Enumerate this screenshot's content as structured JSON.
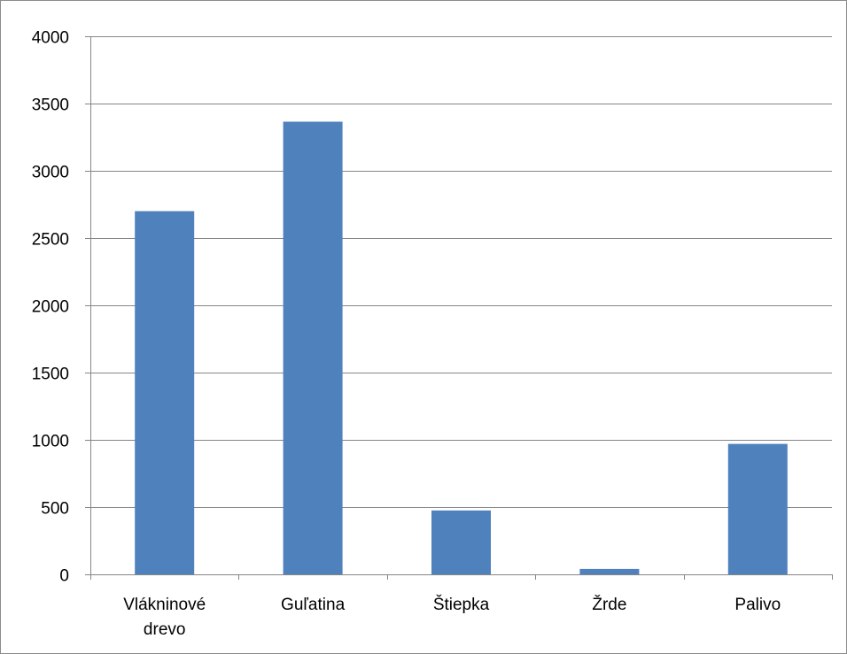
{
  "chart_data": {
    "type": "bar",
    "categories": [
      [
        "Vlákninové",
        "drevo"
      ],
      [
        "Guľatina"
      ],
      [
        "Štiepka"
      ],
      [
        "Žrde"
      ],
      [
        "Palivo"
      ]
    ],
    "values": [
      2700,
      3365,
      475,
      40,
      970
    ],
    "ylim": [
      0,
      4000
    ],
    "yticks": [
      0,
      500,
      1000,
      1500,
      2000,
      2500,
      3000,
      3500,
      4000
    ],
    "grid": true,
    "legend": "none",
    "colors": {
      "bar": "#4f81bd",
      "grid": "#868686",
      "axis": "#868686"
    }
  }
}
